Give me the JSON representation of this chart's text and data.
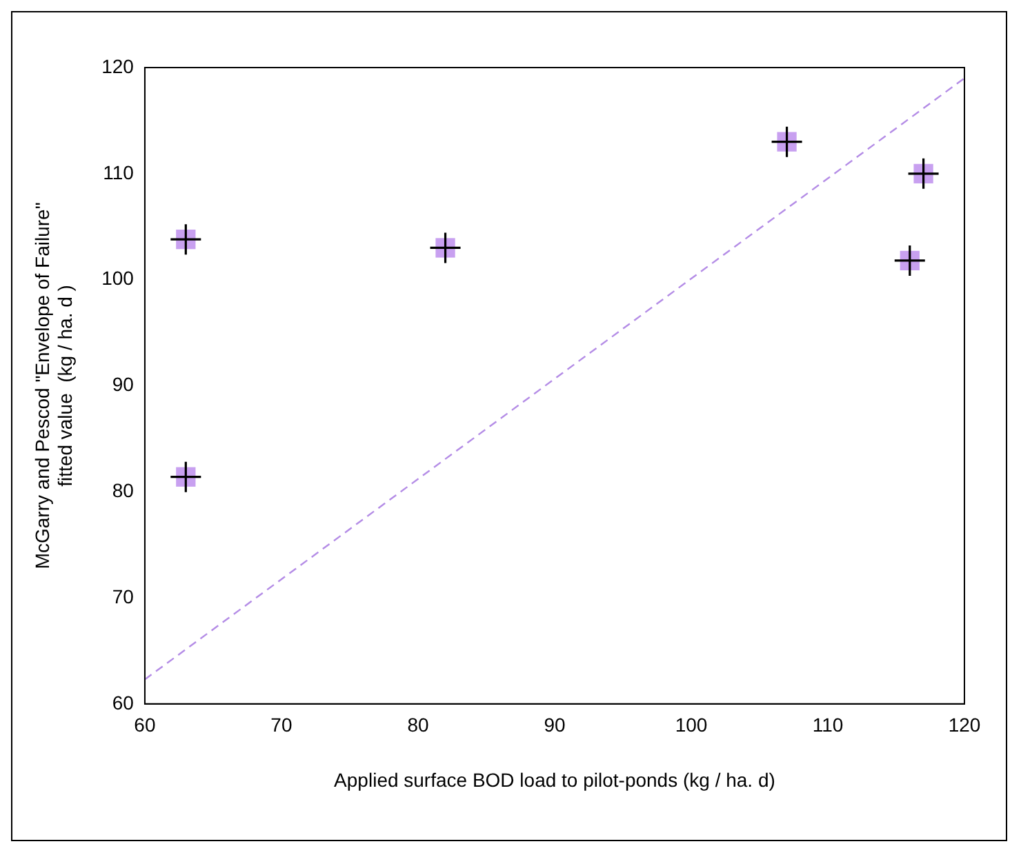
{
  "chart_data": {
    "type": "scatter",
    "xlabel": "Applied surface BOD load to pilot-ponds (kg / ha. d)",
    "ylabel": "McGarry and Pescod \"Envelope of Failure\"\nfitted value  (kg / ha. d )",
    "x": [
      63,
      63,
      82,
      107,
      116,
      117
    ],
    "series": [
      {
        "type": "scatter",
        "color": "#c8a0f0",
        "values": [
          103.8,
          81.4,
          103,
          113,
          101.8,
          110
        ],
        "marker": "square"
      },
      {
        "type": "scatter",
        "color": "#000000",
        "values": [
          103.8,
          81.4,
          103,
          113,
          101.8,
          110
        ],
        "marker": "cross"
      },
      {
        "type": "line",
        "color": "#b48ce6",
        "x": [
          60,
          120
        ],
        "values": [
          62.3,
          119
        ],
        "line_style": "dashed",
        "marker": "none"
      }
    ],
    "xlim": [
      60,
      120
    ],
    "xticks": [
      60,
      70,
      80,
      90,
      100,
      110,
      120
    ],
    "ylim": [
      60,
      120
    ],
    "yticks": [
      60,
      70,
      80,
      90,
      100,
      110,
      120
    ],
    "grid": false,
    "legend": false
  }
}
